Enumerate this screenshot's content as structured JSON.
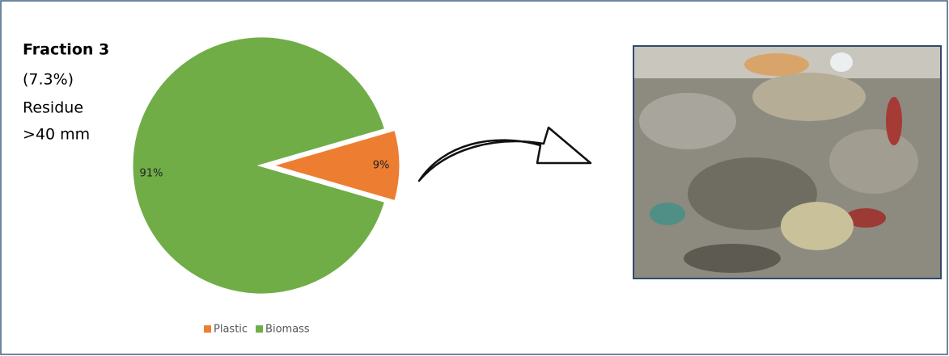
{
  "chart_data": {
    "type": "pie",
    "annotations": [
      "Fraction 3",
      "(7.3%)",
      "Residue",
      ">40 mm"
    ],
    "categories": [
      "Plastic",
      "Biomass"
    ],
    "values": [
      9,
      91
    ],
    "value_labels": [
      "9%",
      "91%"
    ],
    "colors": [
      "#ed7d31",
      "#70ad47"
    ],
    "legend": "bottom"
  }
}
